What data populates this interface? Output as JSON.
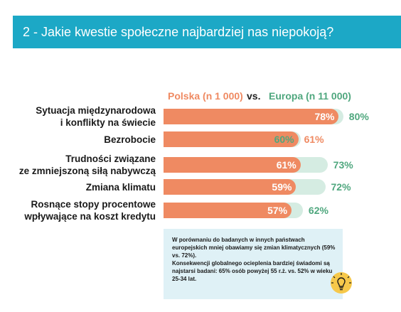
{
  "header": {
    "title": "2 - Jakie kwestie społeczne najbardziej nas niepokoją?"
  },
  "legend": {
    "polska": "Polska (n 1 000)",
    "vs": "vs.",
    "europa": "Europa (n 11 000)"
  },
  "colors": {
    "polska": "#ef8a62",
    "europa_bar": "#d5ece2",
    "europa_text": "#4fa77e",
    "header": "#1ca8c6",
    "note_bg": "#dff1f6"
  },
  "chart_data": {
    "type": "bar",
    "orientation": "horizontal",
    "categories": [
      "Sytuacja międzynarodowa\ni konflikty na świecie",
      "Bezrobocie",
      "Trudności związane\nze zmniejszoną siłą nabywczą",
      "Zmiana klimatu",
      "Rosnące stopy procentowe\nwpływające na koszt kredytu"
    ],
    "series": [
      {
        "name": "Polska (n 1 000)",
        "values": [
          78,
          60,
          61,
          59,
          57
        ],
        "labels": [
          "78%",
          "60%",
          "61%",
          "59%",
          "57%"
        ]
      },
      {
        "name": "Europa (n 11 000)",
        "values": [
          80,
          61,
          73,
          72,
          62
        ],
        "labels": [
          "80%",
          "61%",
          "73%",
          "72%",
          "62%"
        ]
      }
    ],
    "unit": "%",
    "grid": false
  },
  "note": {
    "text1": "W porównaniu do badanych w innych państwach europejskich mniej obawiamy się zmian klimatycznych (59% vs. 72%).",
    "text2": "Konsekwencji globalnego ocieplenia bardziej świadomi są najstarsi badani: 65% osób powyżej 55 r.ż. vs. 52% w wieku 25-34 lat."
  }
}
